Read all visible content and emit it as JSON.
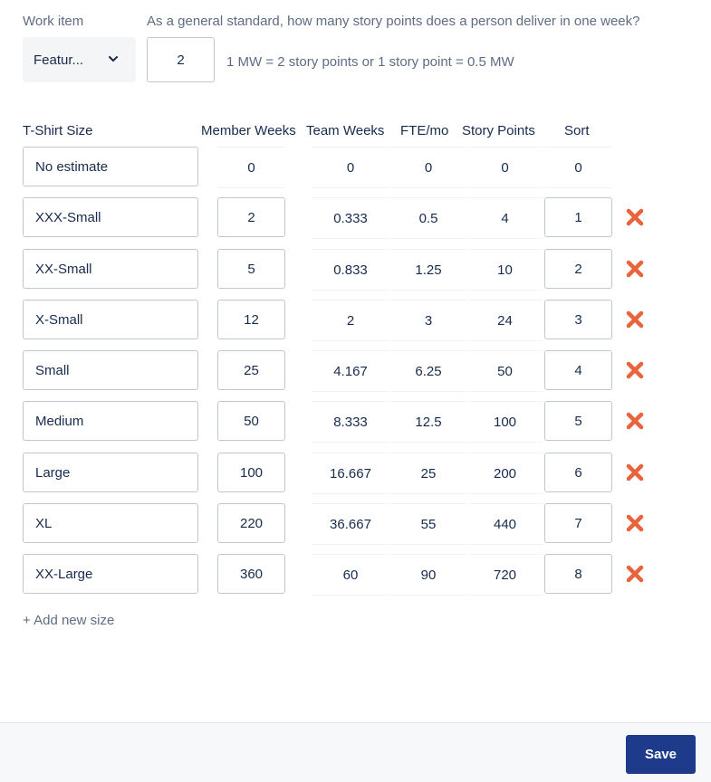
{
  "work_item": {
    "label": "Work item",
    "value": "Featur..."
  },
  "story_points": {
    "question": "As a general standard, how many story points does a person deliver in one week?",
    "value": "2",
    "hint": "1 MW = 2 story points or 1 story point = 0.5 MW"
  },
  "table": {
    "headers": {
      "size": "T-Shirt Size",
      "member_weeks": "Member Weeks",
      "team_weeks": "Team Weeks",
      "fte": "FTE/mo",
      "story_points": "Story Points",
      "sort": "Sort"
    },
    "rows": [
      {
        "name": "No estimate",
        "mw": "0",
        "tw": "0",
        "fte": "0",
        "sp": "0",
        "sort": "0"
      },
      {
        "name": "XXX-Small",
        "mw": "2",
        "tw": "0.333",
        "fte": "0.5",
        "sp": "4",
        "sort": "1"
      },
      {
        "name": "XX-Small",
        "mw": "5",
        "tw": "0.833",
        "fte": "1.25",
        "sp": "10",
        "sort": "2"
      },
      {
        "name": "X-Small",
        "mw": "12",
        "tw": "2",
        "fte": "3",
        "sp": "24",
        "sort": "3"
      },
      {
        "name": "Small",
        "mw": "25",
        "tw": "4.167",
        "fte": "6.25",
        "sp": "50",
        "sort": "4"
      },
      {
        "name": "Medium",
        "mw": "50",
        "tw": "8.333",
        "fte": "12.5",
        "sp": "100",
        "sort": "5"
      },
      {
        "name": "Large",
        "mw": "100",
        "tw": "16.667",
        "fte": "25",
        "sp": "200",
        "sort": "6"
      },
      {
        "name": "XL",
        "mw": "220",
        "tw": "36.667",
        "fte": "55",
        "sp": "440",
        "sort": "7"
      },
      {
        "name": "XX-Large",
        "mw": "360",
        "tw": "60",
        "fte": "90",
        "sp": "720",
        "sort": "8"
      }
    ]
  },
  "add_new_size": "+ Add new size",
  "save_label": "Save",
  "colors": {
    "primary": "#1e3a8a",
    "delete": "#e8643c"
  },
  "icons": {
    "dropdown": "chevron-down-icon",
    "delete": "cross-mark-icon"
  }
}
